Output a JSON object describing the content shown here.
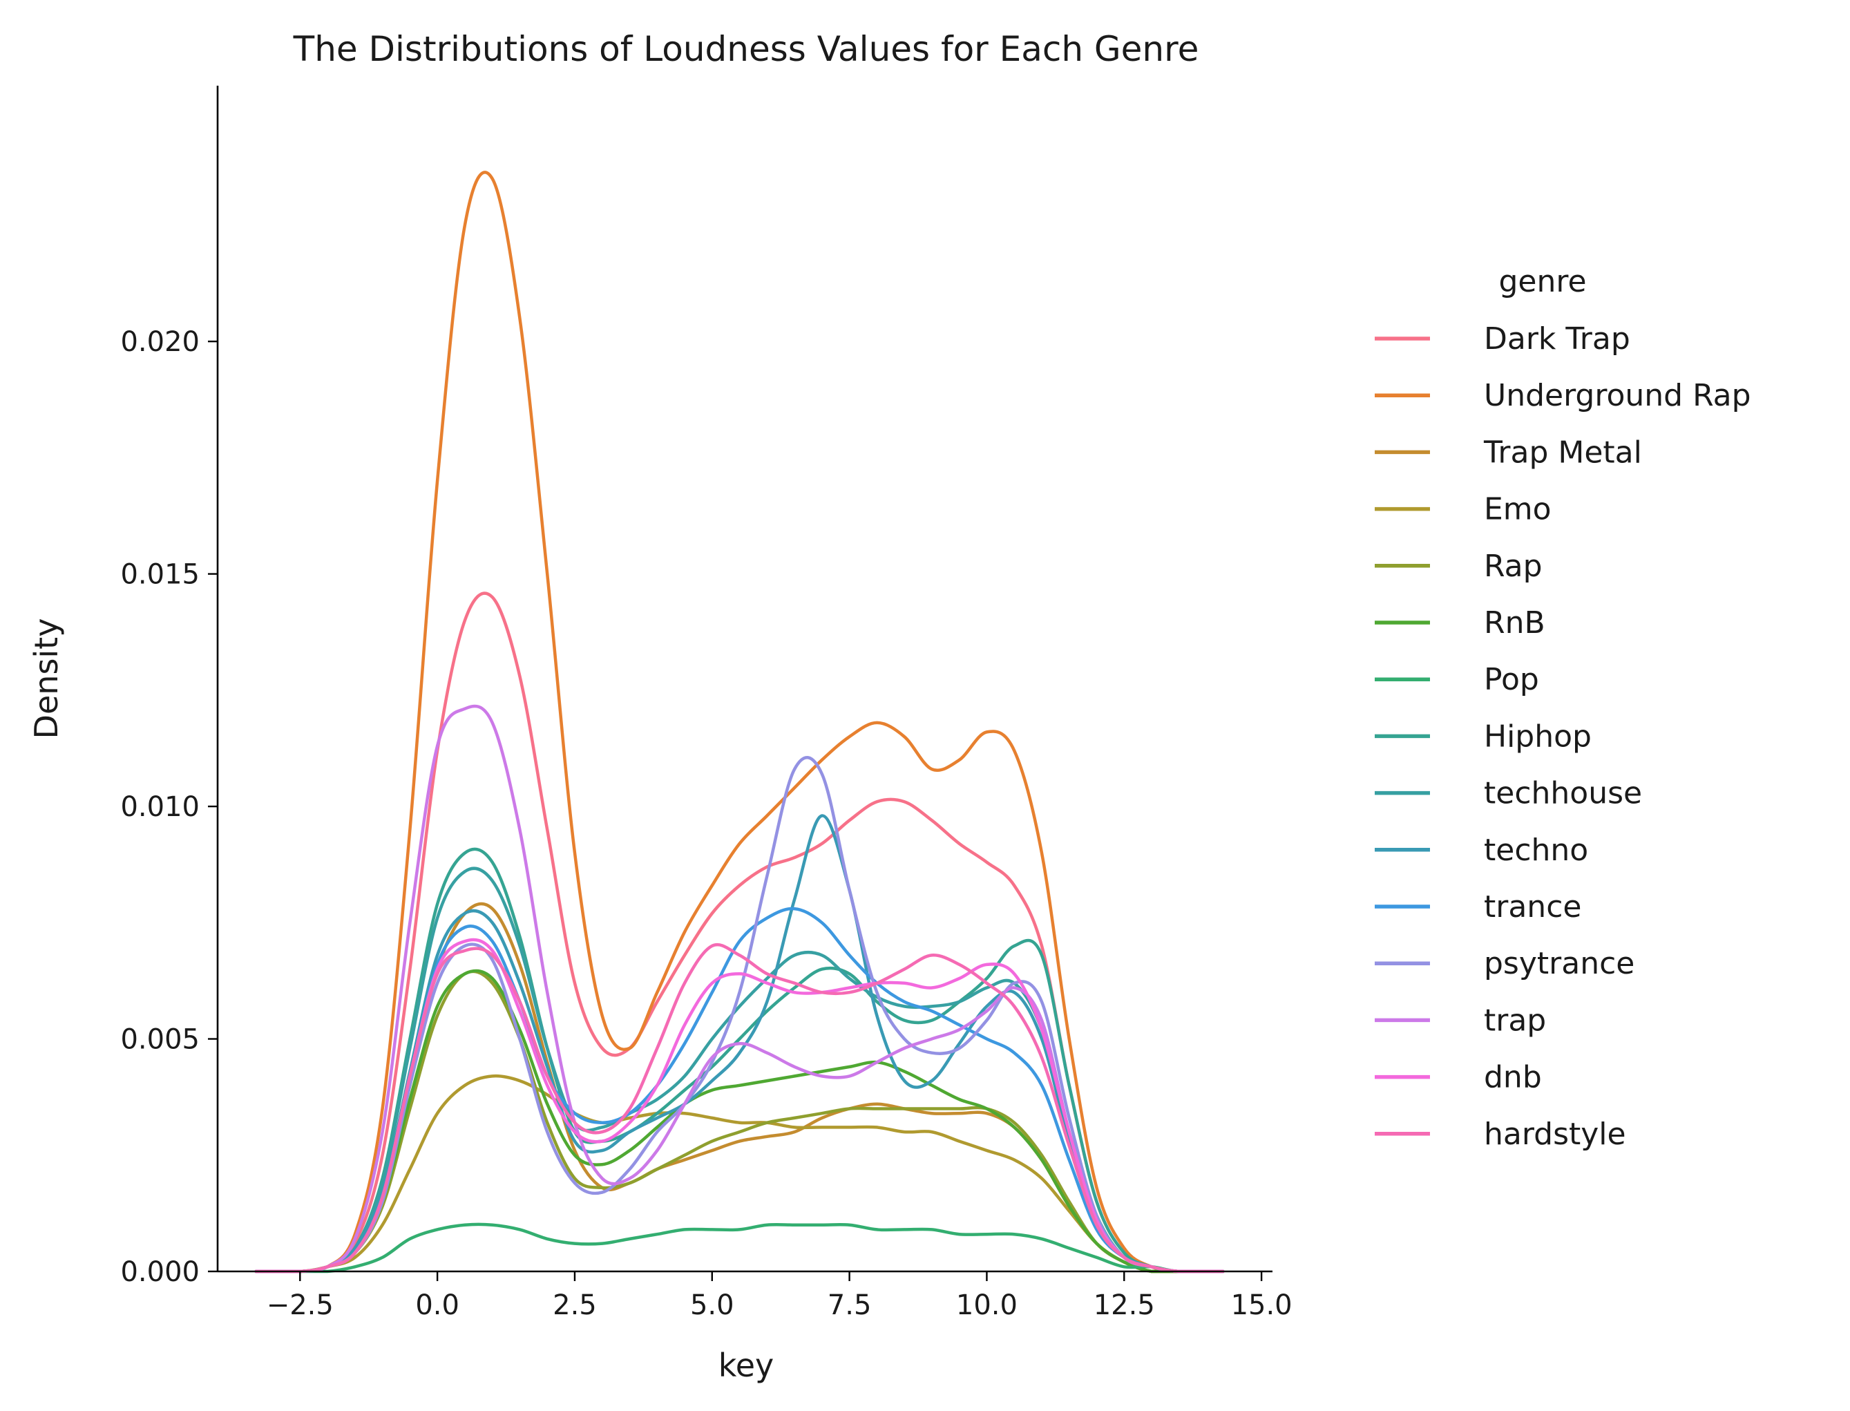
{
  "chart_data": {
    "type": "line",
    "title": "The Distributions of Loudness Values for Each Genre",
    "xlabel": "key",
    "ylabel": "Density",
    "xlim": [
      -4.0,
      15.2
    ],
    "ylim": [
      0,
      0.0255
    ],
    "xticks": [
      -2.5,
      0.0,
      2.5,
      5.0,
      7.5,
      10.0,
      12.5,
      15.0
    ],
    "xtick_labels": [
      "−2.5",
      "0.0",
      "2.5",
      "5.0",
      "7.5",
      "10.0",
      "12.5",
      "15.0"
    ],
    "yticks": [
      0.0,
      0.005,
      0.01,
      0.015,
      0.02
    ],
    "ytick_labels": [
      "0.000",
      "0.005",
      "0.010",
      "0.015",
      "0.020"
    ],
    "grid": false,
    "legend": {
      "title": "genre",
      "placement": "right"
    },
    "x": [
      -3.3,
      -2.5,
      -2.0,
      -1.5,
      -1.0,
      -0.5,
      0.0,
      0.5,
      1.0,
      1.5,
      2.0,
      2.5,
      3.0,
      3.5,
      4.0,
      4.5,
      5.0,
      5.5,
      6.0,
      6.5,
      7.0,
      7.5,
      8.0,
      8.5,
      9.0,
      9.5,
      10.0,
      10.5,
      11.0,
      11.5,
      12.0,
      12.5,
      13.0,
      13.5,
      14.3
    ],
    "series": [
      {
        "name": "Dark Trap",
        "color": "#f77189",
        "values": [
          0,
          0,
          0.0001,
          0.0006,
          0.0025,
          0.0065,
          0.0112,
          0.014,
          0.0145,
          0.0128,
          0.0095,
          0.0062,
          0.0048,
          0.0048,
          0.0058,
          0.0068,
          0.0077,
          0.0083,
          0.0087,
          0.0089,
          0.0092,
          0.0097,
          0.0101,
          0.0101,
          0.0097,
          0.0092,
          0.0088,
          0.0083,
          0.007,
          0.004,
          0.0015,
          0.0004,
          0.0001,
          0,
          0
        ]
      },
      {
        "name": "Underground Rap",
        "color": "#e7802f",
        "values": [
          0,
          0,
          0.0001,
          0.0008,
          0.0035,
          0.0095,
          0.017,
          0.0225,
          0.0235,
          0.0205,
          0.015,
          0.009,
          0.0055,
          0.0048,
          0.006,
          0.0073,
          0.0083,
          0.0092,
          0.0098,
          0.0104,
          0.011,
          0.0115,
          0.0118,
          0.0115,
          0.0108,
          0.011,
          0.0116,
          0.0112,
          0.009,
          0.005,
          0.0018,
          0.0005,
          0.0001,
          0,
          0
        ]
      },
      {
        "name": "Trap Metal",
        "color": "#c48c2f",
        "values": [
          0,
          0,
          0.0001,
          0.0004,
          0.0016,
          0.004,
          0.0065,
          0.0077,
          0.0078,
          0.0066,
          0.0045,
          0.0026,
          0.0018,
          0.0019,
          0.0022,
          0.0024,
          0.0026,
          0.0028,
          0.0029,
          0.003,
          0.0033,
          0.0035,
          0.0036,
          0.0035,
          0.0034,
          0.0034,
          0.0034,
          0.0031,
          0.0024,
          0.0014,
          0.0006,
          0.0002,
          0,
          0,
          0
        ]
      },
      {
        "name": "Emo",
        "color": "#b09a2f",
        "values": [
          0,
          0,
          0.0001,
          0.0003,
          0.001,
          0.0022,
          0.0034,
          0.004,
          0.0042,
          0.0041,
          0.0038,
          0.0034,
          0.0032,
          0.0033,
          0.0034,
          0.0034,
          0.0033,
          0.0032,
          0.0032,
          0.0031,
          0.0031,
          0.0031,
          0.0031,
          0.003,
          0.003,
          0.0028,
          0.0026,
          0.0024,
          0.002,
          0.0013,
          0.0006,
          0.0002,
          0,
          0,
          0
        ]
      },
      {
        "name": "Rap",
        "color": "#8f9f2e",
        "values": [
          0,
          0,
          0.0001,
          0.0004,
          0.0014,
          0.0035,
          0.0055,
          0.0064,
          0.0062,
          0.005,
          0.0032,
          0.002,
          0.0018,
          0.0019,
          0.0022,
          0.0025,
          0.0028,
          0.003,
          0.0032,
          0.0033,
          0.0034,
          0.0035,
          0.0035,
          0.0035,
          0.0035,
          0.0035,
          0.0035,
          0.0032,
          0.0025,
          0.0015,
          0.0006,
          0.0002,
          0,
          0,
          0
        ]
      },
      {
        "name": "RnB",
        "color": "#4fa832",
        "values": [
          0,
          0,
          0.0001,
          0.0004,
          0.0015,
          0.0037,
          0.0057,
          0.0064,
          0.0063,
          0.0052,
          0.0036,
          0.0025,
          0.0023,
          0.0026,
          0.0031,
          0.0036,
          0.0039,
          0.004,
          0.0041,
          0.0042,
          0.0043,
          0.0044,
          0.0045,
          0.0043,
          0.004,
          0.0037,
          0.0035,
          0.0031,
          0.0024,
          0.0014,
          0.0006,
          0.0002,
          0,
          0,
          0
        ]
      },
      {
        "name": "Pop",
        "color": "#33ae70",
        "values": [
          0,
          0,
          0,
          0.0001,
          0.0003,
          0.0007,
          0.0009,
          0.001,
          0.001,
          0.0009,
          0.0007,
          0.0006,
          0.0006,
          0.0007,
          0.0008,
          0.0009,
          0.0009,
          0.0009,
          0.001,
          0.001,
          0.001,
          0.001,
          0.0009,
          0.0009,
          0.0009,
          0.0008,
          0.0008,
          0.0008,
          0.0007,
          0.0005,
          0.0003,
          0.0001,
          0.0001,
          0,
          0
        ]
      },
      {
        "name": "Hiphop",
        "color": "#35a492",
        "values": [
          0,
          0,
          0.0001,
          0.0005,
          0.002,
          0.005,
          0.0079,
          0.009,
          0.0088,
          0.0072,
          0.0048,
          0.003,
          0.0028,
          0.003,
          0.0034,
          0.0039,
          0.0044,
          0.005,
          0.0056,
          0.0061,
          0.0065,
          0.0064,
          0.0058,
          0.0054,
          0.0054,
          0.0058,
          0.0063,
          0.007,
          0.0068,
          0.004,
          0.0015,
          0.0004,
          0.0001,
          0,
          0
        ]
      },
      {
        "name": "techhouse",
        "color": "#37a0a2",
        "values": [
          0,
          0,
          0.0001,
          0.0005,
          0.0019,
          0.0048,
          0.0076,
          0.0086,
          0.0084,
          0.007,
          0.0048,
          0.0032,
          0.0031,
          0.0034,
          0.0037,
          0.0042,
          0.005,
          0.0057,
          0.0063,
          0.0068,
          0.0068,
          0.0063,
          0.0059,
          0.0057,
          0.0057,
          0.0058,
          0.0061,
          0.0062,
          0.0052,
          0.003,
          0.0012,
          0.0003,
          0.0001,
          0,
          0
        ]
      },
      {
        "name": "techno",
        "color": "#399ab4",
        "values": [
          0,
          0,
          0.0001,
          0.0005,
          0.0017,
          0.0043,
          0.0068,
          0.0077,
          0.0075,
          0.0062,
          0.0044,
          0.0028,
          0.0026,
          0.003,
          0.0033,
          0.0036,
          0.0041,
          0.0047,
          0.0058,
          0.008,
          0.0098,
          0.0082,
          0.0055,
          0.0041,
          0.0041,
          0.0049,
          0.0057,
          0.006,
          0.005,
          0.0028,
          0.0011,
          0.0003,
          0.0001,
          0,
          0
        ]
      },
      {
        "name": "trance",
        "color": "#3d98e0",
        "values": [
          0,
          0,
          0.0001,
          0.0004,
          0.0016,
          0.0042,
          0.0066,
          0.0074,
          0.0071,
          0.0058,
          0.0042,
          0.0034,
          0.0032,
          0.0034,
          0.004,
          0.0049,
          0.006,
          0.0071,
          0.0076,
          0.0078,
          0.0075,
          0.0068,
          0.0062,
          0.0058,
          0.0056,
          0.0053,
          0.005,
          0.0047,
          0.004,
          0.0024,
          0.0009,
          0.0003,
          0.0001,
          0,
          0
        ]
      },
      {
        "name": "psytrance",
        "color": "#9391e3",
        "values": [
          0,
          0,
          0.0001,
          0.0004,
          0.0015,
          0.004,
          0.0062,
          0.007,
          0.0067,
          0.005,
          0.003,
          0.0019,
          0.0017,
          0.0022,
          0.003,
          0.0036,
          0.0045,
          0.006,
          0.0085,
          0.0108,
          0.0107,
          0.0082,
          0.006,
          0.005,
          0.0047,
          0.0048,
          0.0054,
          0.0062,
          0.0058,
          0.0033,
          0.0012,
          0.0003,
          0.0001,
          0,
          0
        ]
      },
      {
        "name": "trap",
        "color": "#cc79e8",
        "values": [
          0,
          0,
          0.0001,
          0.0007,
          0.003,
          0.0075,
          0.0113,
          0.0121,
          0.0118,
          0.0095,
          0.006,
          0.0032,
          0.002,
          0.002,
          0.0026,
          0.0036,
          0.0046,
          0.0049,
          0.0047,
          0.0044,
          0.0042,
          0.0042,
          0.0045,
          0.0048,
          0.005,
          0.0052,
          0.0056,
          0.0061,
          0.0054,
          0.003,
          0.0011,
          0.0003,
          0.0001,
          0,
          0
        ]
      },
      {
        "name": "dnb",
        "color": "#f369dd",
        "values": [
          0,
          0,
          0.0001,
          0.0004,
          0.0016,
          0.0042,
          0.0065,
          0.0071,
          0.0069,
          0.0056,
          0.004,
          0.003,
          0.0028,
          0.0032,
          0.004,
          0.0053,
          0.0062,
          0.0064,
          0.0062,
          0.006,
          0.006,
          0.0061,
          0.0062,
          0.0062,
          0.0061,
          0.0063,
          0.0066,
          0.0064,
          0.0052,
          0.003,
          0.0011,
          0.0003,
          0.0001,
          0,
          0
        ]
      },
      {
        "name": "hardstyle",
        "color": "#f56ab3",
        "values": [
          0,
          0,
          0.0001,
          0.0004,
          0.0016,
          0.0042,
          0.0064,
          0.0069,
          0.0068,
          0.0058,
          0.0042,
          0.0032,
          0.003,
          0.0035,
          0.0048,
          0.0062,
          0.007,
          0.0068,
          0.0064,
          0.0062,
          0.006,
          0.006,
          0.0062,
          0.0065,
          0.0068,
          0.0066,
          0.0062,
          0.0057,
          0.0046,
          0.0027,
          0.001,
          0.0003,
          0.0001,
          0,
          0
        ]
      }
    ]
  }
}
